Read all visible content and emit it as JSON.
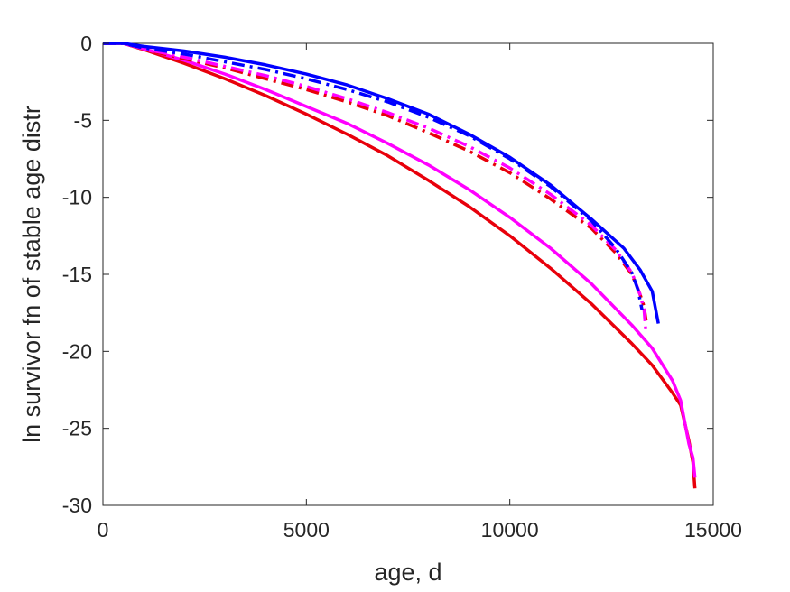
{
  "chart_data": {
    "type": "line",
    "xlabel": "age, d",
    "ylabel": "ln survivor fn of stable age distr",
    "xlim": [
      0,
      15000
    ],
    "ylim": [
      -30,
      0
    ],
    "xticks": [
      0,
      5000,
      10000,
      15000
    ],
    "xtick_labels": [
      "0",
      "5000",
      "10000",
      "15000"
    ],
    "yticks": [
      0,
      -5,
      -10,
      -15,
      -20,
      -25,
      -30
    ],
    "ytick_labels": [
      "0",
      "-5",
      "-10",
      "-15",
      "-20",
      "-25",
      "-30"
    ],
    "grid": false,
    "legend": "none",
    "series": [
      {
        "color": "#e8000b",
        "style": "solid",
        "x": [
          0,
          500,
          1000,
          2000,
          3000,
          4000,
          5000,
          6000,
          7000,
          8000,
          9000,
          10000,
          11000,
          12000,
          13000,
          13500,
          14000,
          14200,
          14400,
          14500,
          14550
        ],
        "y": [
          0,
          0,
          -0.4,
          -1.3,
          -2.3,
          -3.4,
          -4.6,
          -5.9,
          -7.3,
          -8.9,
          -10.6,
          -12.5,
          -14.6,
          -16.9,
          -19.5,
          -20.9,
          -22.7,
          -23.5,
          -25.8,
          -27.2,
          -28.9
        ]
      },
      {
        "color": "#ff00ff",
        "style": "solid",
        "x": [
          0,
          500,
          1000,
          2000,
          3000,
          4000,
          5000,
          6000,
          7000,
          8000,
          9000,
          10000,
          11000,
          12000,
          13000,
          13500,
          14000,
          14200,
          14400,
          14500,
          14550
        ],
        "y": [
          0,
          0,
          -0.35,
          -1.1,
          -2.0,
          -3.0,
          -4.1,
          -5.2,
          -6.5,
          -7.9,
          -9.5,
          -11.3,
          -13.3,
          -15.6,
          -18.3,
          -19.8,
          -21.9,
          -23.2,
          -26.0,
          -26.9,
          -28.2
        ]
      },
      {
        "color": "#e8000b",
        "style": "dashdot",
        "x": [
          0,
          500,
          1000,
          2000,
          3000,
          4000,
          5000,
          6000,
          7000,
          8000,
          9000,
          10000,
          11000,
          12000,
          12600,
          13000,
          13200,
          13300,
          13350
        ],
        "y": [
          0,
          0,
          -0.4,
          -1.0,
          -1.6,
          -2.3,
          -3.0,
          -3.8,
          -4.7,
          -5.8,
          -7.0,
          -8.4,
          -10.1,
          -12.0,
          -13.6,
          -15.0,
          -16.3,
          -17.1,
          -18.0
        ]
      },
      {
        "color": "#ff00ff",
        "style": "dashdot",
        "x": [
          0,
          500,
          1000,
          2000,
          3000,
          4000,
          5000,
          6000,
          7000,
          8000,
          9000,
          10000,
          11000,
          12000,
          12600,
          13000,
          13200,
          13300,
          13350
        ],
        "y": [
          0,
          0,
          -0.35,
          -0.9,
          -1.5,
          -2.1,
          -2.8,
          -3.6,
          -4.5,
          -5.5,
          -6.7,
          -8.1,
          -9.8,
          -11.8,
          -13.4,
          -14.9,
          -16.3,
          -17.3,
          -18.9
        ]
      },
      {
        "color": "#0000ff",
        "style": "dashdot",
        "x": [
          0,
          500,
          1000,
          2000,
          3000,
          4000,
          5000,
          6000,
          7000,
          8000,
          9000,
          10000,
          11000,
          12000,
          12600,
          13000,
          13150,
          13250
        ],
        "y": [
          0,
          0,
          -0.3,
          -0.7,
          -1.2,
          -1.7,
          -2.3,
          -3.0,
          -3.8,
          -4.8,
          -6.0,
          -7.5,
          -9.3,
          -11.5,
          -13.3,
          -14.9,
          -16.0,
          -17.3
        ]
      },
      {
        "color": "#0000ff",
        "style": "solid",
        "x": [
          0,
          500,
          1000,
          2000,
          3000,
          4000,
          5000,
          6000,
          7000,
          8000,
          9000,
          10000,
          11000,
          12000,
          12800,
          13200,
          13500,
          13650
        ],
        "y": [
          0,
          0,
          -0.2,
          -0.5,
          -0.9,
          -1.4,
          -2.0,
          -2.7,
          -3.6,
          -4.6,
          -5.9,
          -7.4,
          -9.2,
          -11.4,
          -13.3,
          -14.7,
          -16.1,
          -18.2
        ]
      }
    ]
  }
}
